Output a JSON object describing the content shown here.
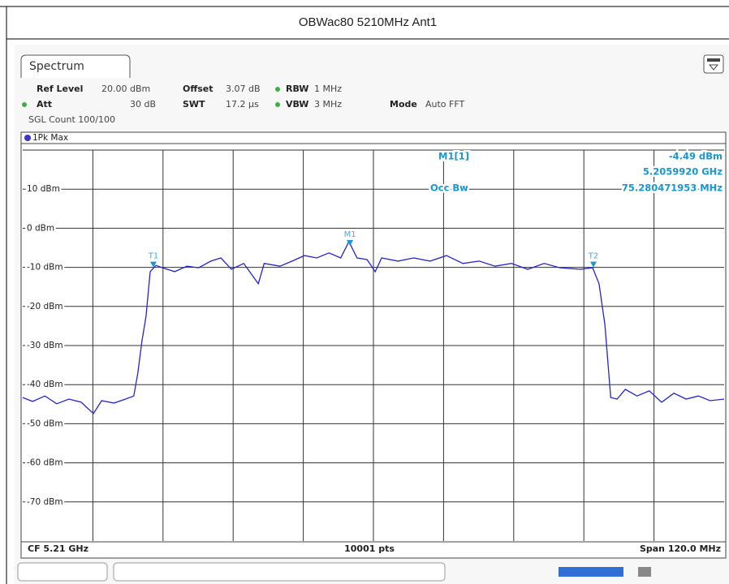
{
  "chart_data": {
    "type": "line",
    "title": "OBWac80 5210MHz Ant1",
    "tab": "Spectrum",
    "settings": [
      {
        "label": "Ref Level",
        "value": "20.00 dBm"
      },
      {
        "label": "Offset",
        "value": "3.07 dB"
      },
      {
        "label": "RBW",
        "value": "1 MHz"
      },
      {
        "label": "Att",
        "value": "30 dB"
      },
      {
        "label": "SWT",
        "value": "17.2 µs"
      },
      {
        "label": "VBW",
        "value": "3 MHz"
      },
      {
        "label": "Mode",
        "value": "Auto FFT"
      }
    ],
    "count": "SGL Count 100/100",
    "readout": [
      "M1[1]",
      "-4.49 dBm",
      "5.2059920 GHz",
      "Occ Bw",
      "75.280471953 MHz"
    ],
    "footer": [
      "CF 5.21 GHz",
      "10001 pts",
      "Span 120.0 MHz"
    ],
    "xlim": [
      5150,
      5270
    ],
    "xticks": [
      5162,
      5174,
      5186,
      5198,
      5210,
      5222,
      5234,
      5246,
      5258
    ],
    "ylim": [
      -80,
      20
    ],
    "yticks": [
      {
        "value": 10,
        "label": "10 dBm"
      },
      {
        "value": 0,
        "label": "0 dBm"
      },
      {
        "value": -10,
        "label": "-10 dBm"
      },
      {
        "value": -20,
        "label": "-20 dBm"
      },
      {
        "value": -30,
        "label": "-30 dBm"
      },
      {
        "value": -40,
        "label": "-40 dBm"
      },
      {
        "value": -50,
        "label": "-50 dBm"
      },
      {
        "value": -60,
        "label": "-60 dBm"
      },
      {
        "value": -70,
        "label": "-70 dBm"
      }
    ],
    "grid": true,
    "series": [
      {
        "name": "1Pk Max",
        "color": "#2424d4",
        "x": [
          5150,
          5151.7,
          5153.8,
          5155.8,
          5157.9,
          5160,
          5162.1,
          5163.5,
          5165.6,
          5167.6,
          5169,
          5169.7,
          5170.4,
          5171.1,
          5171.8,
          5172.8,
          5173.9,
          5176,
          5178.1,
          5180.1,
          5182.2,
          5183.9,
          5185.7,
          5187.8,
          5190.3,
          5191.3,
          5194,
          5196.1,
          5198.2,
          5200.3,
          5202.4,
          5204.4,
          5205.8,
          5207.2,
          5208.9,
          5210.3,
          5211.4,
          5214.2,
          5216.9,
          5219.7,
          5222.5,
          5225.3,
          5228.1,
          5230.8,
          5233.6,
          5236.4,
          5239.2,
          5241.9,
          5245.4,
          5247.5,
          5248.6,
          5249.6,
          5250.6,
          5251.7,
          5253.1,
          5255.1,
          5257.2,
          5259.3,
          5261.4,
          5263.5,
          5265.6,
          5267.6,
          5270
        ],
        "values": [
          -43.3,
          -44.3,
          -42.9,
          -44.9,
          -43.7,
          -44.5,
          -47.4,
          -44.1,
          -44.7,
          -43.7,
          -42.9,
          -37,
          -28.8,
          -22.5,
          -11.1,
          -9.5,
          -10.1,
          -11.1,
          -9.7,
          -10.1,
          -8.4,
          -7.6,
          -10.5,
          -9,
          -14.2,
          -9,
          -9.7,
          -8.4,
          -7,
          -7.6,
          -6.3,
          -7.6,
          -3.4,
          -7.6,
          -8,
          -11.1,
          -7.6,
          -8.4,
          -7.6,
          -8.4,
          -7,
          -9,
          -8.4,
          -9.7,
          -9,
          -10.5,
          -9,
          -10.1,
          -10.5,
          -10.1,
          -14.2,
          -24.6,
          -43.3,
          -43.7,
          -41.2,
          -42.9,
          -41.6,
          -44.5,
          -42.2,
          -43.7,
          -42.9,
          -44.1,
          -43.7
        ]
      }
    ],
    "markers": [
      {
        "name": "M1",
        "x": 5205.992,
        "y": -4.49
      },
      {
        "name": "T1",
        "x": 5172.36,
        "y": -10
      },
      {
        "name": "T2",
        "x": 5247.64,
        "y": -10
      }
    ]
  }
}
